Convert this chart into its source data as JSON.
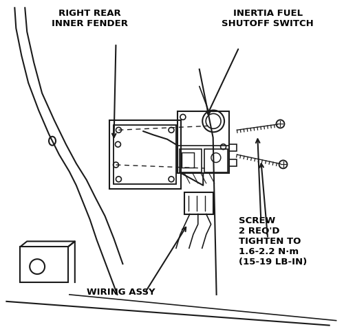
{
  "background_color": "#ffffff",
  "line_color": "#1a1a1a",
  "text_color": "#000000",
  "title_right_rear": "RIGHT REAR\nINNER FENDER",
  "title_inertia": "INERTIA FUEL\nSHUTOFF SWITCH",
  "label_screw": "SCREW\n2 REQ'D\nTIGHTEN TO\n1.6-2.2 N·m\n(15-19 LB-IN)",
  "label_wiring": "WIRING ASSY",
  "figsize": [
    5.0,
    4.79
  ],
  "dpi": 100
}
